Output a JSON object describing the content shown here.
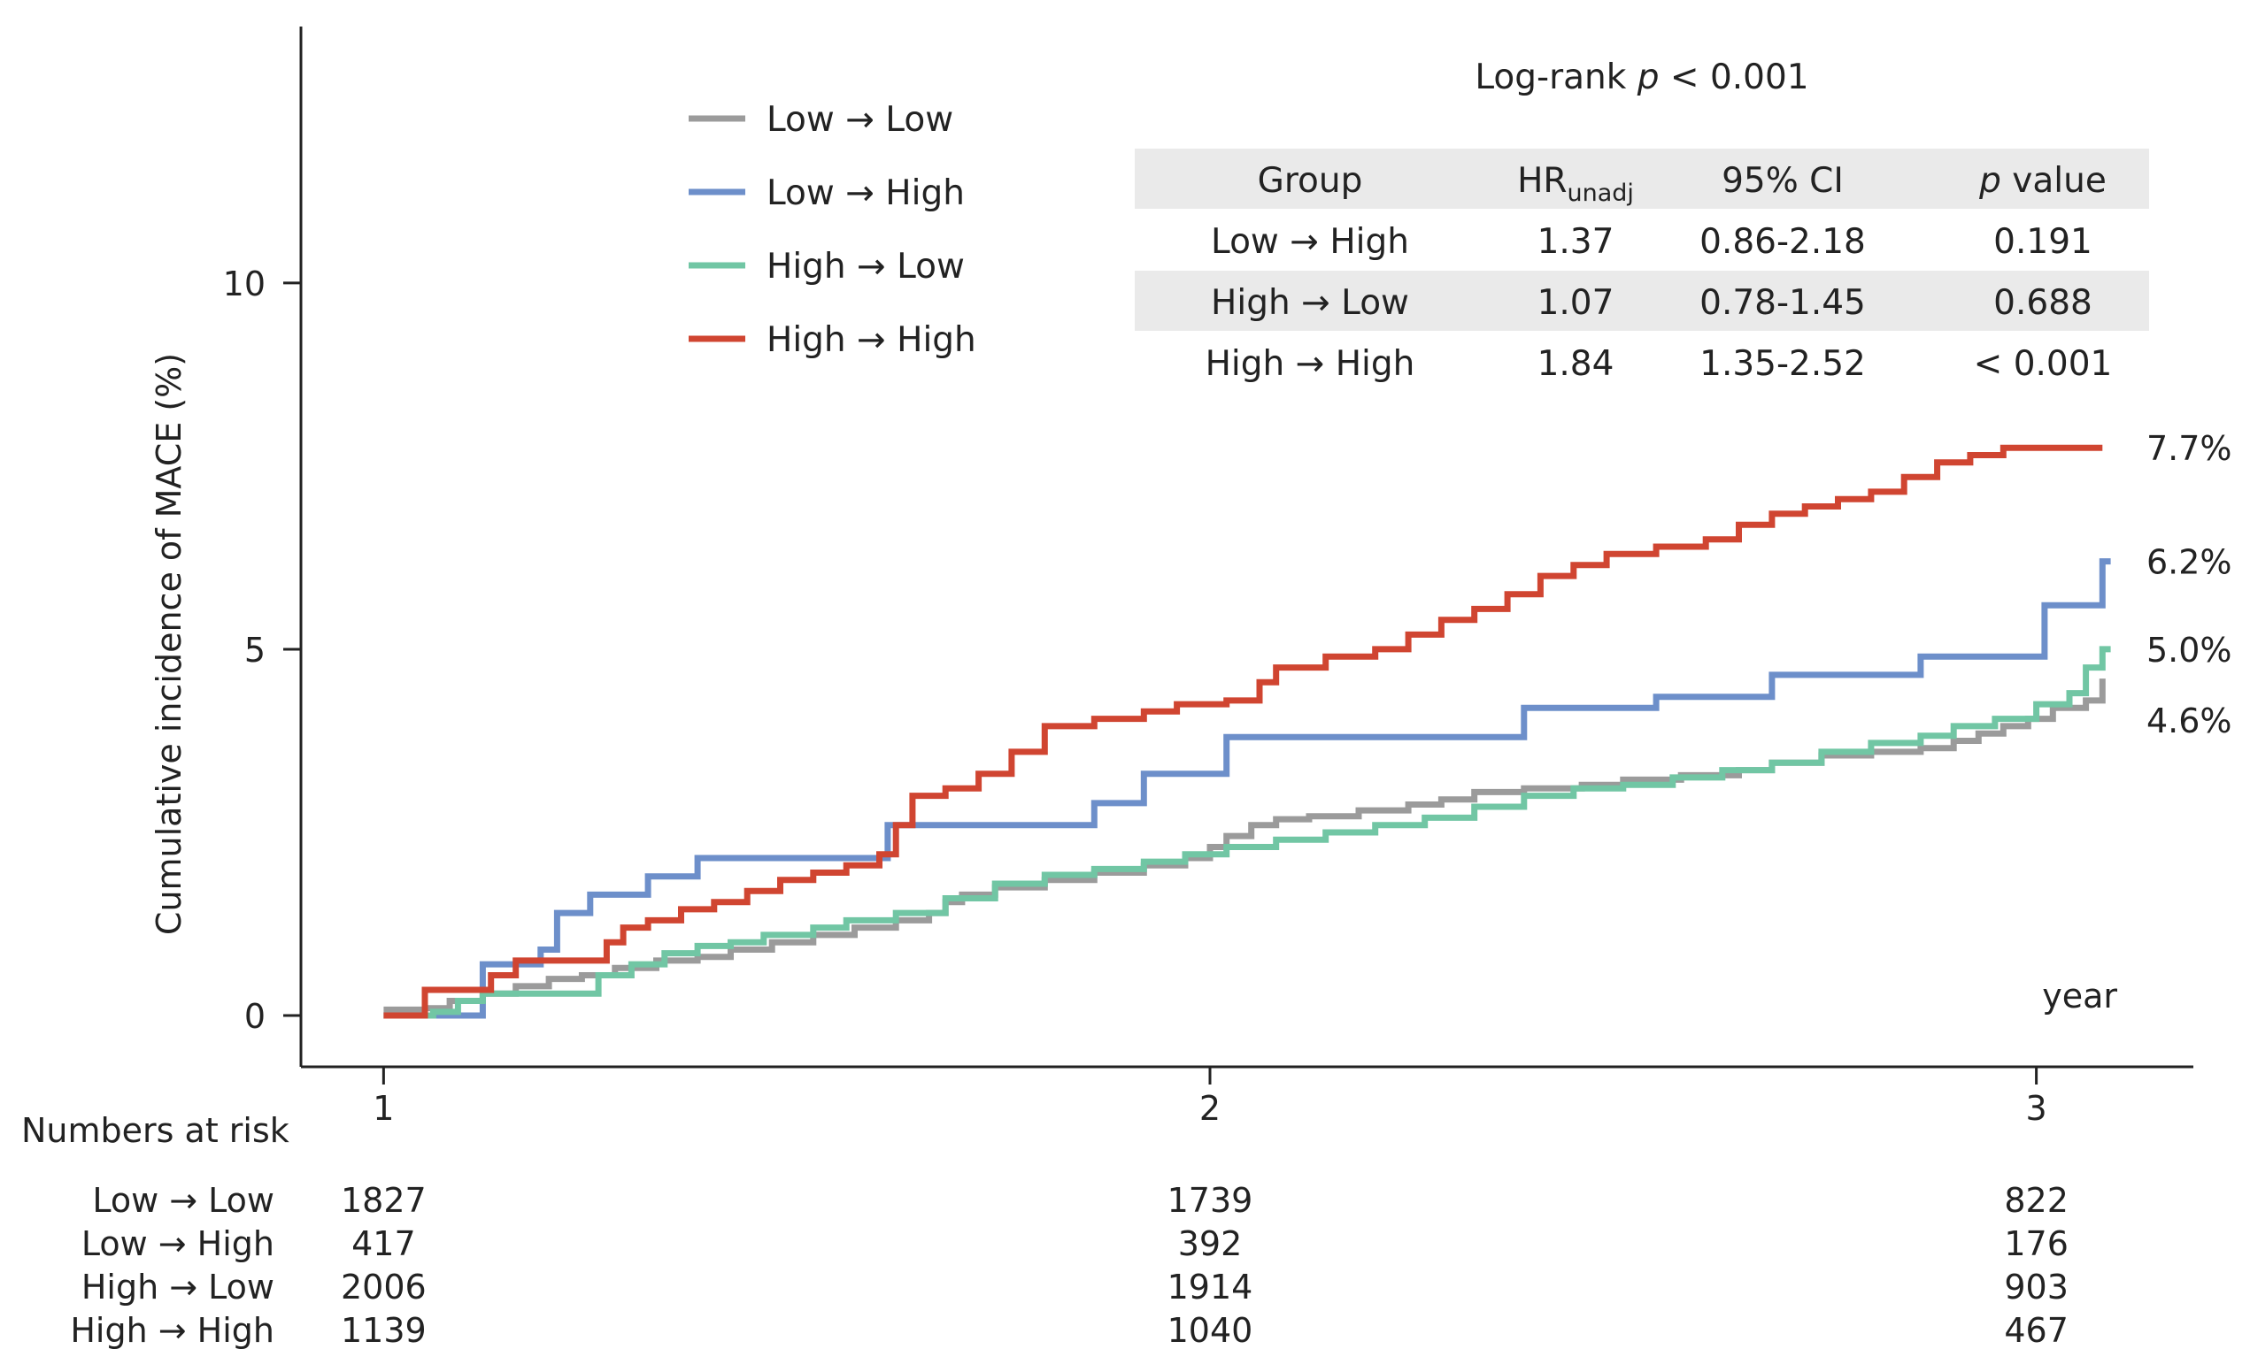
{
  "chart_data": {
    "type": "line",
    "ylabel": "Cumulative incidence of MACE (%)",
    "xlabel": "year",
    "xlim": [
      0.9,
      3.19
    ],
    "ylim": [
      -0.7,
      13.5
    ],
    "x_ticks": [
      1,
      2,
      3
    ],
    "x_tick_labels": [
      "1",
      "2",
      "3"
    ],
    "y_ticks": [
      0,
      5,
      10
    ],
    "y_tick_labels": [
      "0",
      "5",
      "10"
    ],
    "legend_placement": "top-left",
    "arrow": "→",
    "series": [
      {
        "name": "Low → Low",
        "group_from": "Low",
        "group_to": "Low",
        "color": "#9b9b9b",
        "end_label": "4.6%",
        "points": [
          [
            1.0,
            0.08
          ],
          [
            1.05,
            0.1
          ],
          [
            1.08,
            0.2
          ],
          [
            1.12,
            0.3
          ],
          [
            1.16,
            0.4
          ],
          [
            1.2,
            0.5
          ],
          [
            1.24,
            0.55
          ],
          [
            1.28,
            0.65
          ],
          [
            1.33,
            0.75
          ],
          [
            1.38,
            0.8
          ],
          [
            1.42,
            0.9
          ],
          [
            1.47,
            1.0
          ],
          [
            1.52,
            1.1
          ],
          [
            1.57,
            1.2
          ],
          [
            1.62,
            1.3
          ],
          [
            1.66,
            1.4
          ],
          [
            1.68,
            1.55
          ],
          [
            1.7,
            1.65
          ],
          [
            1.74,
            1.75
          ],
          [
            1.8,
            1.85
          ],
          [
            1.86,
            1.95
          ],
          [
            1.92,
            2.05
          ],
          [
            1.97,
            2.15
          ],
          [
            2.0,
            2.3
          ],
          [
            2.02,
            2.45
          ],
          [
            2.05,
            2.6
          ],
          [
            2.08,
            2.68
          ],
          [
            2.12,
            2.72
          ],
          [
            2.18,
            2.8
          ],
          [
            2.24,
            2.88
          ],
          [
            2.28,
            2.95
          ],
          [
            2.32,
            3.05
          ],
          [
            2.38,
            3.1
          ],
          [
            2.45,
            3.15
          ],
          [
            2.5,
            3.22
          ],
          [
            2.57,
            3.28
          ],
          [
            2.64,
            3.35
          ],
          [
            2.68,
            3.45
          ],
          [
            2.74,
            3.55
          ],
          [
            2.8,
            3.6
          ],
          [
            2.86,
            3.65
          ],
          [
            2.9,
            3.75
          ],
          [
            2.93,
            3.85
          ],
          [
            2.96,
            3.95
          ],
          [
            2.99,
            4.05
          ],
          [
            3.02,
            4.2
          ],
          [
            3.06,
            4.3
          ],
          [
            3.08,
            4.6
          ],
          [
            3.08,
            4.35
          ]
        ]
      },
      {
        "name": "Low → High",
        "group_from": "Low",
        "group_to": "High",
        "color": "#6d8fca",
        "end_label": "6.2%",
        "points": [
          [
            1.0,
            0.0
          ],
          [
            1.07,
            0.0
          ],
          [
            1.12,
            0.7
          ],
          [
            1.19,
            0.9
          ],
          [
            1.21,
            1.4
          ],
          [
            1.25,
            1.65
          ],
          [
            1.32,
            1.9
          ],
          [
            1.38,
            2.15
          ],
          [
            1.58,
            2.15
          ],
          [
            1.61,
            2.6
          ],
          [
            1.82,
            2.6
          ],
          [
            1.86,
            2.9
          ],
          [
            1.92,
            3.3
          ],
          [
            1.98,
            3.3
          ],
          [
            2.02,
            3.8
          ],
          [
            2.34,
            3.8
          ],
          [
            2.38,
            4.2
          ],
          [
            2.48,
            4.2
          ],
          [
            2.54,
            4.35
          ],
          [
            2.64,
            4.35
          ],
          [
            2.68,
            4.65
          ],
          [
            2.82,
            4.65
          ],
          [
            2.86,
            4.9
          ],
          [
            2.96,
            4.9
          ],
          [
            3.01,
            5.6
          ],
          [
            3.06,
            5.6
          ],
          [
            3.08,
            6.2
          ],
          [
            3.09,
            6.2
          ]
        ]
      },
      {
        "name": "High → Low",
        "group_from": "High",
        "group_to": "Low",
        "color": "#71c6a4",
        "end_label": "5.0%",
        "points": [
          [
            1.0,
            0.0
          ],
          [
            1.06,
            0.05
          ],
          [
            1.09,
            0.2
          ],
          [
            1.12,
            0.3
          ],
          [
            1.22,
            0.3
          ],
          [
            1.26,
            0.55
          ],
          [
            1.3,
            0.7
          ],
          [
            1.34,
            0.85
          ],
          [
            1.38,
            0.95
          ],
          [
            1.42,
            1.0
          ],
          [
            1.46,
            1.1
          ],
          [
            1.52,
            1.2
          ],
          [
            1.56,
            1.3
          ],
          [
            1.62,
            1.4
          ],
          [
            1.68,
            1.6
          ],
          [
            1.74,
            1.8
          ],
          [
            1.8,
            1.92
          ],
          [
            1.86,
            2.0
          ],
          [
            1.92,
            2.1
          ],
          [
            1.97,
            2.2
          ],
          [
            2.02,
            2.3
          ],
          [
            2.08,
            2.4
          ],
          [
            2.14,
            2.5
          ],
          [
            2.2,
            2.6
          ],
          [
            2.26,
            2.7
          ],
          [
            2.32,
            2.85
          ],
          [
            2.38,
            3.0
          ],
          [
            2.44,
            3.1
          ],
          [
            2.5,
            3.15
          ],
          [
            2.56,
            3.25
          ],
          [
            2.62,
            3.35
          ],
          [
            2.68,
            3.45
          ],
          [
            2.74,
            3.6
          ],
          [
            2.8,
            3.72
          ],
          [
            2.86,
            3.82
          ],
          [
            2.9,
            3.95
          ],
          [
            2.95,
            4.05
          ],
          [
            3.0,
            4.25
          ],
          [
            3.04,
            4.4
          ],
          [
            3.06,
            4.75
          ],
          [
            3.08,
            5.0
          ],
          [
            3.09,
            5.0
          ]
        ]
      },
      {
        "name": "High → High",
        "group_from": "High",
        "group_to": "High",
        "color": "#d04531",
        "end_label": "7.7%",
        "points": [
          [
            1.0,
            0.0
          ],
          [
            1.03,
            0.0
          ],
          [
            1.05,
            0.35
          ],
          [
            1.1,
            0.35
          ],
          [
            1.13,
            0.55
          ],
          [
            1.16,
            0.75
          ],
          [
            1.25,
            0.75
          ],
          [
            1.27,
            1.0
          ],
          [
            1.29,
            1.2
          ],
          [
            1.32,
            1.3
          ],
          [
            1.36,
            1.45
          ],
          [
            1.4,
            1.55
          ],
          [
            1.44,
            1.7
          ],
          [
            1.48,
            1.85
          ],
          [
            1.52,
            1.95
          ],
          [
            1.56,
            2.05
          ],
          [
            1.6,
            2.2
          ],
          [
            1.62,
            2.6
          ],
          [
            1.64,
            3.0
          ],
          [
            1.68,
            3.1
          ],
          [
            1.72,
            3.3
          ],
          [
            1.76,
            3.6
          ],
          [
            1.8,
            3.95
          ],
          [
            1.86,
            4.05
          ],
          [
            1.92,
            4.15
          ],
          [
            1.96,
            4.25
          ],
          [
            2.02,
            4.3
          ],
          [
            2.06,
            4.55
          ],
          [
            2.08,
            4.75
          ],
          [
            2.14,
            4.9
          ],
          [
            2.2,
            5.0
          ],
          [
            2.24,
            5.2
          ],
          [
            2.28,
            5.4
          ],
          [
            2.32,
            5.55
          ],
          [
            2.36,
            5.75
          ],
          [
            2.4,
            6.0
          ],
          [
            2.44,
            6.15
          ],
          [
            2.48,
            6.3
          ],
          [
            2.54,
            6.4
          ],
          [
            2.6,
            6.5
          ],
          [
            2.64,
            6.7
          ],
          [
            2.68,
            6.85
          ],
          [
            2.72,
            6.95
          ],
          [
            2.76,
            7.05
          ],
          [
            2.8,
            7.15
          ],
          [
            2.84,
            7.35
          ],
          [
            2.88,
            7.55
          ],
          [
            2.92,
            7.65
          ],
          [
            2.96,
            7.75
          ],
          [
            3.08,
            7.75
          ]
        ]
      }
    ],
    "annotations": {
      "logrank": {
        "prefix": "Log-rank ",
        "p": "p",
        "suffix": " < 0.001"
      }
    },
    "hr_table": {
      "headers": {
        "group": "Group",
        "hr_main": "HR",
        "hr_sub": "unadj",
        "ci": "95% CI",
        "p_italic": "p",
        "p_rest": " value"
      },
      "rows": [
        {
          "group_from": "Low",
          "group_to": "High",
          "hr": "1.37",
          "ci": "0.86-2.18",
          "p": "0.191"
        },
        {
          "group_from": "High",
          "group_to": "Low",
          "hr": "1.07",
          "ci": "0.78-1.45",
          "p": "0.688"
        },
        {
          "group_from": "High",
          "group_to": "High",
          "hr": "1.84",
          "ci": "1.35-2.52",
          "p": "< 0.001"
        }
      ]
    },
    "risk_table": {
      "title": "Numbers at risk",
      "x": [
        1,
        2,
        3
      ],
      "rows": [
        {
          "group_from": "Low",
          "group_to": "Low",
          "values": [
            "1827",
            "1739",
            "822"
          ]
        },
        {
          "group_from": "Low",
          "group_to": "High",
          "values": [
            "417",
            "392",
            "176"
          ]
        },
        {
          "group_from": "High",
          "group_to": "Low",
          "values": [
            "2006",
            "1914",
            "903"
          ]
        },
        {
          "group_from": "High",
          "group_to": "High",
          "values": [
            "1139",
            "1040",
            "467"
          ]
        }
      ]
    },
    "colors": {
      "axis": "#222222",
      "table_shade": "#eaeaea"
    }
  }
}
